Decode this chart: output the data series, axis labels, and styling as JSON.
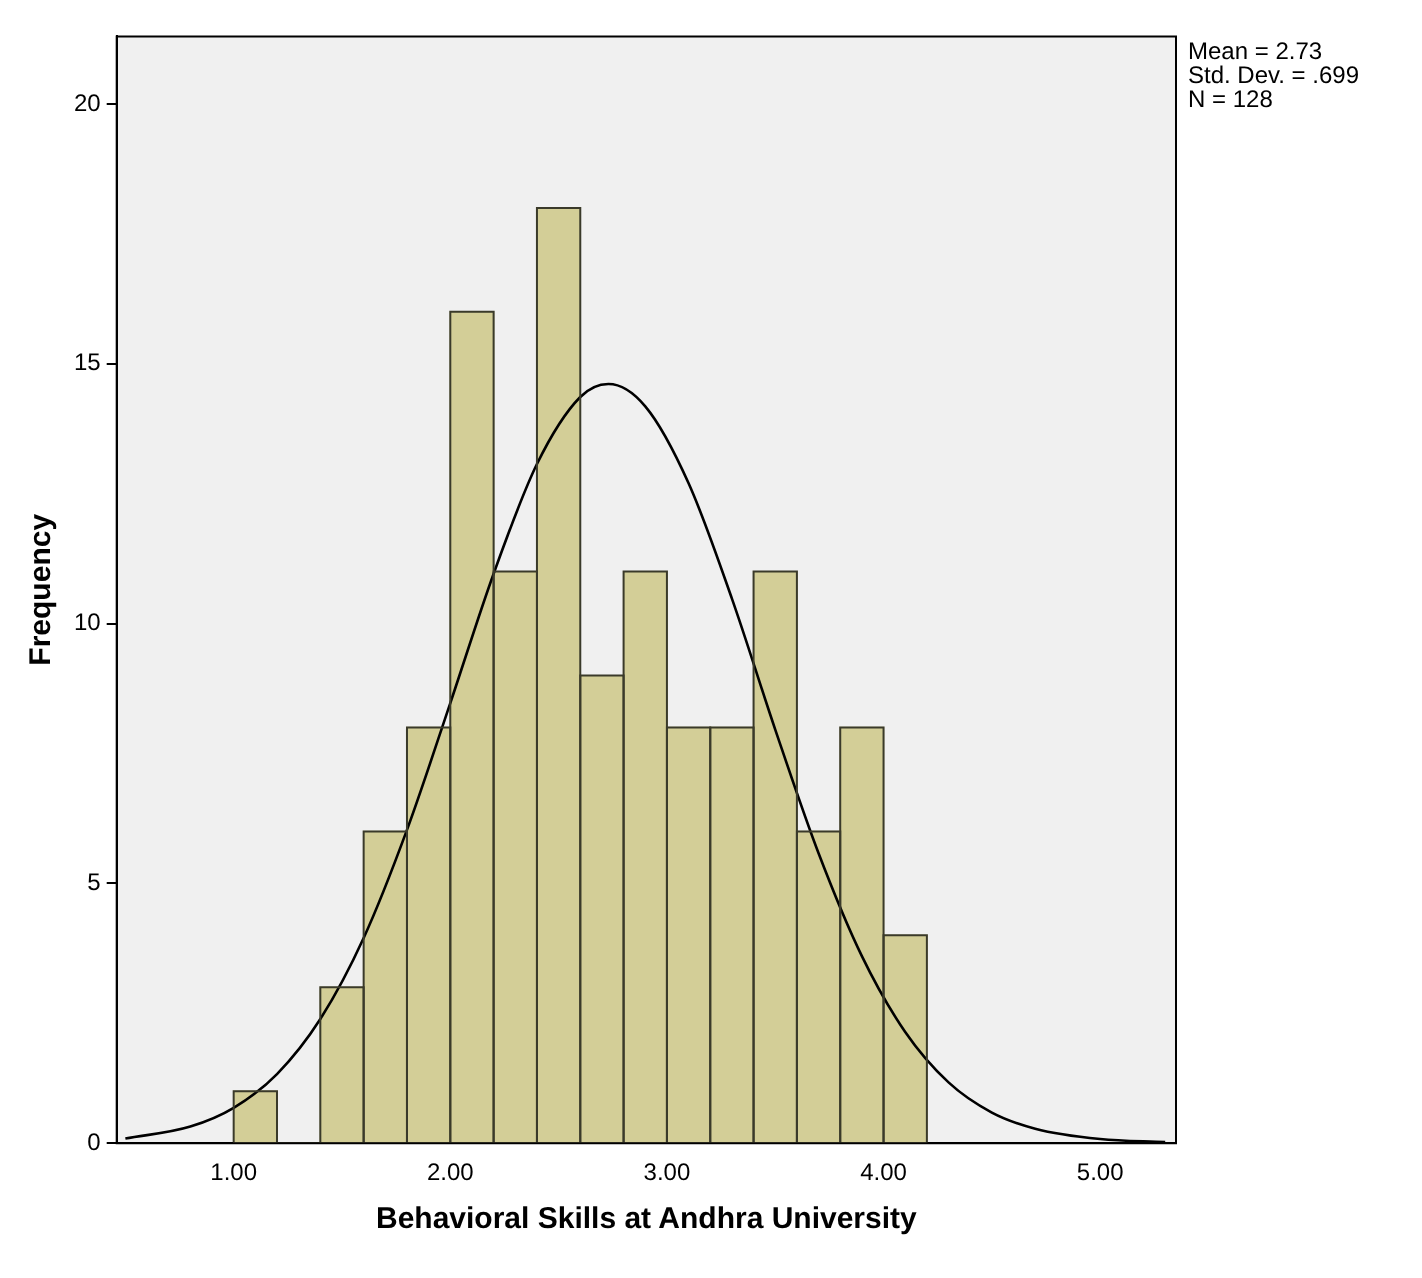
{
  "chart_data": {
    "type": "histogram",
    "xlabel": "Behavioral Skills at Andhra University",
    "ylabel": "Frequency",
    "bins": [
      1.0,
      1.2,
      1.4,
      1.6,
      1.8,
      2.0,
      2.2,
      2.4,
      2.6,
      2.8,
      3.0,
      3.2,
      3.4,
      3.6,
      3.8,
      4.0,
      4.2
    ],
    "values": [
      1,
      0,
      3,
      6,
      8,
      16,
      11,
      18,
      9,
      11,
      8,
      8,
      11,
      6,
      8,
      4
    ],
    "color": "#d3ce97",
    "series": [
      {
        "type": "line",
        "color": "#000000",
        "x": [
          0.5,
          0.8,
          1.0,
          1.2,
          1.4,
          1.6,
          1.8,
          2.0,
          2.2,
          2.4,
          2.6,
          2.73,
          2.9,
          3.1,
          3.3,
          3.5,
          3.7,
          3.9,
          4.1,
          4.3,
          4.5,
          4.7,
          5.0,
          5.3
        ],
        "values": [
          0.09,
          0.32,
          0.68,
          1.33,
          2.39,
          3.95,
          6.03,
          8.47,
          10.96,
          13.07,
          14.36,
          14.61,
          14.18,
          12.7,
          10.48,
          7.96,
          5.58,
          3.6,
          2.14,
          1.17,
          0.59,
          0.28,
          0.08,
          0.02
        ]
      }
    ],
    "xlim": [
      0.46,
      5.35
    ],
    "ylim": [
      0,
      21.3
    ],
    "xticks": [
      {
        "value": 1,
        "label": "1.00"
      },
      {
        "value": 2,
        "label": "2.00"
      },
      {
        "value": 3,
        "label": "3.00"
      },
      {
        "value": 4,
        "label": "4.00"
      },
      {
        "value": 5,
        "label": "5.00"
      }
    ],
    "yticks": [
      0,
      5,
      10,
      15,
      20
    ],
    "grid": false,
    "legend": false,
    "marker": "none",
    "line_style": "solid",
    "annotations": [
      "Mean = 2.73",
      "Std. Dev. = .699",
      "N = 128"
    ]
  }
}
